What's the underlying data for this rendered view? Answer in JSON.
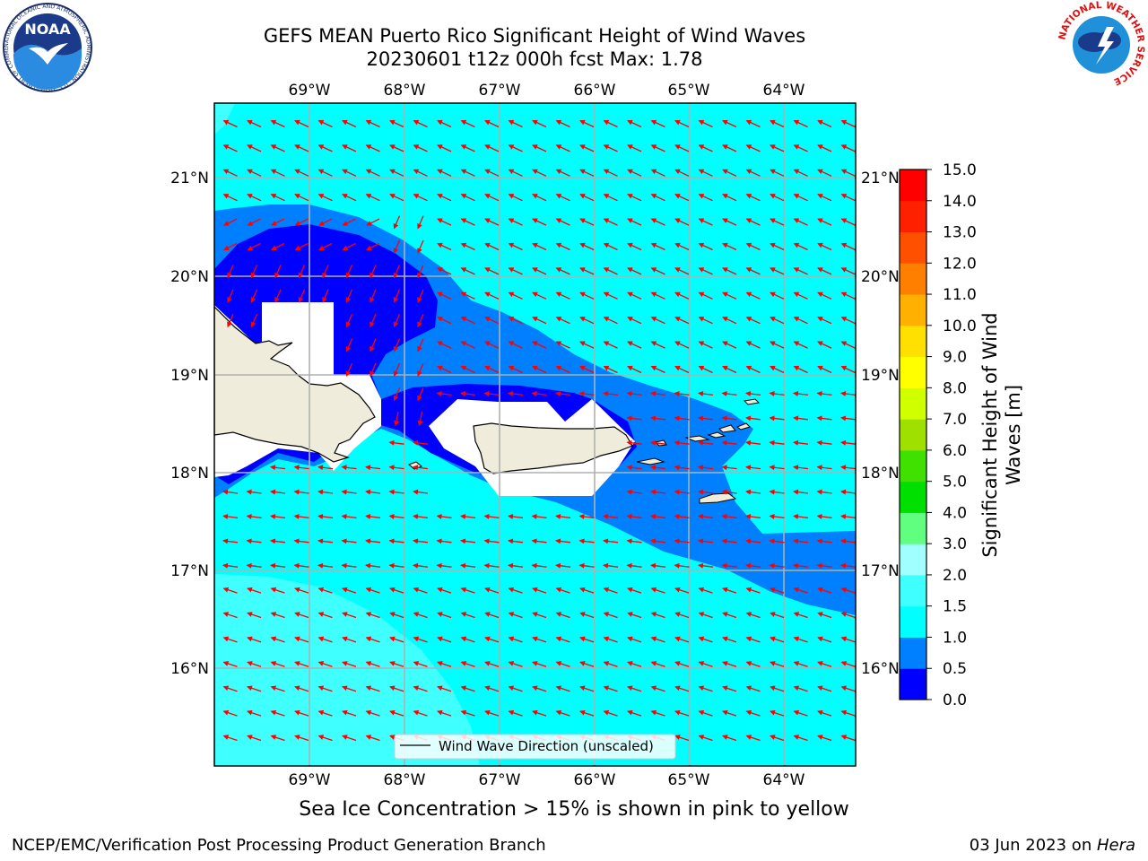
{
  "header": {
    "title_line1": "GEFS MEAN Puerto Rico Significant Height of Wind Waves",
    "title_line2": "20230601 t12z 000h fcst   Max: 1.78"
  },
  "logos": {
    "noaa_text": "NOAA",
    "noaa_ring": "NATIONAL OCEANIC AND ATMOSPHERIC ADMINISTRATION · U.S. DEPARTMENT OF COMMERCE",
    "nws_ring": "NATIONAL WEATHER SERVICE"
  },
  "map": {
    "lon_labels": [
      "69°W",
      "68°W",
      "67°W",
      "66°W",
      "65°W",
      "64°W"
    ],
    "lat_labels": [
      "21°N",
      "20°N",
      "19°N",
      "18°N",
      "17°N",
      "16°N"
    ],
    "legend_label": "Wind Wave Direction (unscaled)",
    "arrow_color": "#ff0000",
    "land_color": "#efecdc"
  },
  "colorbar": {
    "title_line1": "Significant Height of Wind",
    "title_line2": "Waves [m]",
    "ticks": [
      "0.0",
      "0.5",
      "1.0",
      "1.5",
      "2.0",
      "3.0",
      "4.0",
      "5.0",
      "6.0",
      "7.0",
      "8.0",
      "9.0",
      "10.0",
      "11.0",
      "12.0",
      "13.0",
      "14.0",
      "15.0"
    ],
    "colors": [
      "#0000ff",
      "#007fff",
      "#00ffff",
      "#40ffff",
      "#a0ffff",
      "#60ff80",
      "#00e000",
      "#40e000",
      "#a0e000",
      "#d0ff00",
      "#ffff00",
      "#ffe000",
      "#ffb000",
      "#ff8000",
      "#ff5000",
      "#ff2000",
      "#ff0000"
    ]
  },
  "notes": {
    "sea_ice": "Sea Ice Concentration > 15% is shown in pink to yellow",
    "footer_left": "NCEP/EMC/Verification Post Processing Product Generation Branch",
    "footer_right_date": "03 Jun 2023 on ",
    "footer_right_host": "Hera"
  }
}
